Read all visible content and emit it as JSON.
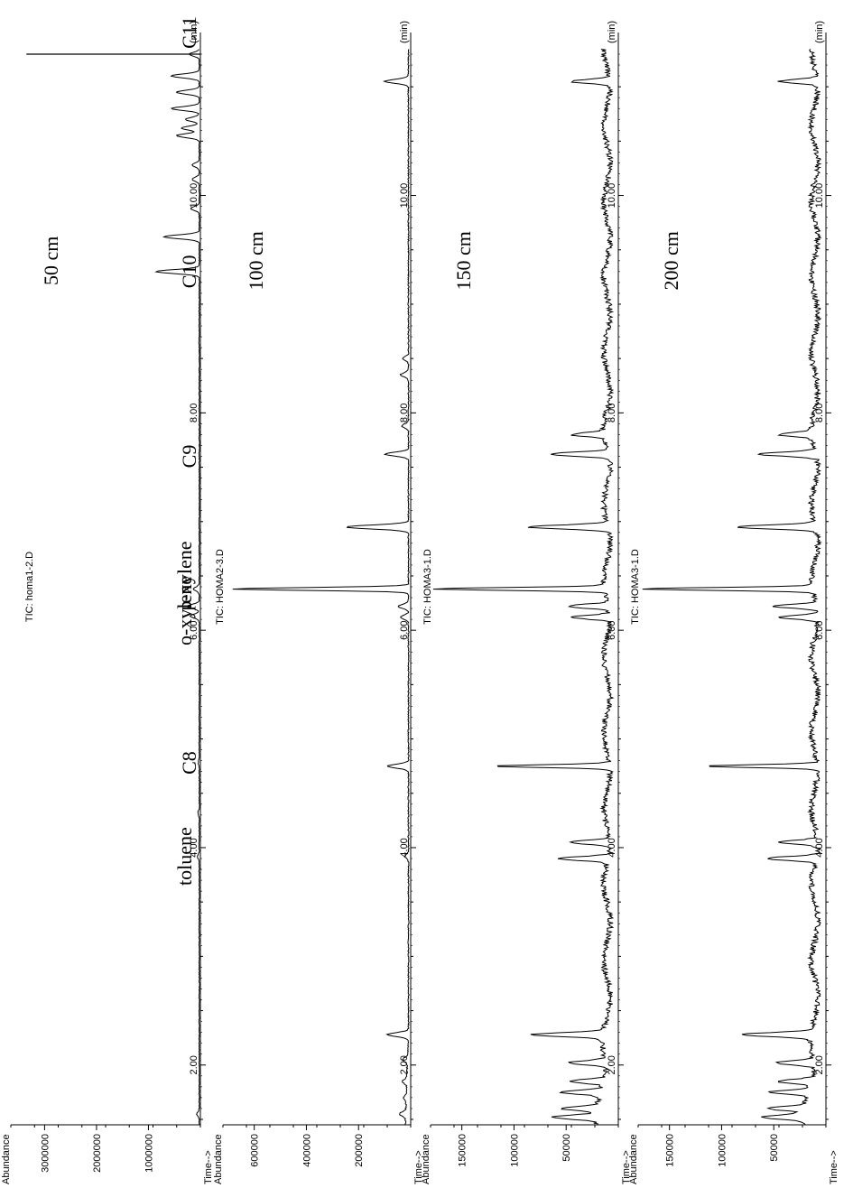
{
  "chart_data": [
    {
      "type": "line",
      "title": "TIC: homa1-2.D",
      "ylabel": "Abundance",
      "xlabel": "Time-->",
      "x_unit": "(min)",
      "xlim": [
        1.45,
        11.35
      ],
      "ylim": [
        0,
        3650000
      ],
      "x_ticks": [
        "2.00",
        "4.00",
        "6.00",
        "8.00",
        "10.00"
      ],
      "y_ticks": [
        "1000000",
        "2000000",
        "3000000"
      ],
      "depth_label": "50 cm",
      "peaks": [
        {
          "x": 1.55,
          "y": 60000
        },
        {
          "x": 3.92,
          "y": 50000
        },
        {
          "x": 4.32,
          "y": 40000
        },
        {
          "x": 4.78,
          "y": 30000
        },
        {
          "x": 6.13,
          "y": 180000
        },
        {
          "x": 6.22,
          "y": 250000
        },
        {
          "x": 6.38,
          "y": 120000
        },
        {
          "x": 9.3,
          "y": 850000
        },
        {
          "x": 9.62,
          "y": 700000
        },
        {
          "x": 9.88,
          "y": 180000
        },
        {
          "x": 10.15,
          "y": 150000
        },
        {
          "x": 10.28,
          "y": 150000
        },
        {
          "x": 10.55,
          "y": 450000
        },
        {
          "x": 10.62,
          "y": 350000
        },
        {
          "x": 10.7,
          "y": 280000
        },
        {
          "x": 10.8,
          "y": 550000
        },
        {
          "x": 10.95,
          "y": 450000
        },
        {
          "x": 11.1,
          "y": 550000
        },
        {
          "x": 11.3,
          "y": 200000
        }
      ],
      "main_peak": {
        "x": 11.52,
        "y": 3350000
      },
      "annotations": [
        {
          "text": "toluene",
          "x": 3.92
        },
        {
          "text": "C8",
          "x": 4.78
        },
        {
          "text": "o-xylene",
          "x": 6.18
        },
        {
          "text": "p-xylene",
          "x": 6.5
        },
        {
          "text": "C9",
          "x": 7.6
        },
        {
          "text": "C10",
          "x": 9.3
        },
        {
          "text": "C11",
          "x": 11.5
        }
      ]
    },
    {
      "type": "line",
      "title": "TIC: HOMA2-3.D",
      "ylabel": "Abundance",
      "xlabel": "Time-->",
      "x_unit": "(min)",
      "xlim": [
        1.45,
        11.35
      ],
      "ylim": [
        0,
        720000
      ],
      "x_ticks": [
        "2.00",
        "4.00",
        "6.00",
        "8.00",
        "10.00"
      ],
      "y_ticks": [
        "200000",
        "400000",
        "600000"
      ],
      "depth_label": "100 cm",
      "peaks": [
        {
          "x": 1.55,
          "y": 35000
        },
        {
          "x": 1.7,
          "y": 20000
        },
        {
          "x": 1.85,
          "y": 25000
        },
        {
          "x": 2.05,
          "y": 25000
        },
        {
          "x": 2.28,
          "y": 85000
        },
        {
          "x": 3.92,
          "y": 18000
        },
        {
          "x": 4.75,
          "y": 85000
        },
        {
          "x": 6.12,
          "y": 35000
        },
        {
          "x": 6.22,
          "y": 45000
        },
        {
          "x": 6.38,
          "y": 685000
        },
        {
          "x": 6.95,
          "y": 245000
        },
        {
          "x": 7.62,
          "y": 95000
        },
        {
          "x": 7.88,
          "y": 30000
        },
        {
          "x": 8.35,
          "y": 35000
        },
        {
          "x": 8.5,
          "y": 25000
        },
        {
          "x": 11.05,
          "y": 95000
        }
      ]
    },
    {
      "type": "line",
      "title": "TIC: HOMA3-1.D",
      "ylabel": "Abundance",
      "xlabel": "Time-->",
      "x_unit": "(min)",
      "xlim": [
        1.45,
        11.35
      ],
      "ylim": [
        0,
        180000
      ],
      "x_ticks": [
        "2.00",
        "4.00",
        "6.00",
        "8.00",
        "10.00"
      ],
      "y_ticks": [
        "50000",
        "100000",
        "150000"
      ],
      "depth_label": "150 cm",
      "peaks": [
        {
          "x": 1.52,
          "y": 52000
        },
        {
          "x": 1.6,
          "y": 45000
        },
        {
          "x": 1.75,
          "y": 46000
        },
        {
          "x": 1.85,
          "y": 40000
        },
        {
          "x": 2.02,
          "y": 42000
        },
        {
          "x": 2.28,
          "y": 75000
        },
        {
          "x": 3.9,
          "y": 52000
        },
        {
          "x": 4.05,
          "y": 42000
        },
        {
          "x": 4.75,
          "y": 115000
        },
        {
          "x": 6.12,
          "y": 42000
        },
        {
          "x": 6.22,
          "y": 45000
        },
        {
          "x": 6.38,
          "y": 172000
        },
        {
          "x": 6.95,
          "y": 82000
        },
        {
          "x": 7.62,
          "y": 62000
        },
        {
          "x": 7.8,
          "y": 38000
        },
        {
          "x": 11.05,
          "y": 42000
        }
      ]
    },
    {
      "type": "line",
      "title": "TIC: HOMA3-1.D",
      "ylabel": "Abundance",
      "xlabel": "Time-->",
      "x_unit": "(min)",
      "xlim": [
        1.45,
        11.35
      ],
      "ylim": [
        0,
        180000
      ],
      "x_ticks": [
        "2.00",
        "4.00",
        "6.00",
        "8.00",
        "10.00"
      ],
      "y_ticks": [
        "50000",
        "100000",
        "150000"
      ],
      "depth_label": "200 cm",
      "peaks": [
        {
          "x": 1.52,
          "y": 52000
        },
        {
          "x": 1.6,
          "y": 45000
        },
        {
          "x": 1.75,
          "y": 46000
        },
        {
          "x": 1.85,
          "y": 40000
        },
        {
          "x": 2.02,
          "y": 42000
        },
        {
          "x": 2.28,
          "y": 75000
        },
        {
          "x": 3.9,
          "y": 52000
        },
        {
          "x": 4.05,
          "y": 42000
        },
        {
          "x": 4.75,
          "y": 115000
        },
        {
          "x": 6.12,
          "y": 42000
        },
        {
          "x": 6.22,
          "y": 45000
        },
        {
          "x": 6.38,
          "y": 172000
        },
        {
          "x": 6.95,
          "y": 82000
        },
        {
          "x": 7.62,
          "y": 62000
        },
        {
          "x": 7.8,
          "y": 38000
        },
        {
          "x": 11.05,
          "y": 42000
        }
      ]
    }
  ]
}
